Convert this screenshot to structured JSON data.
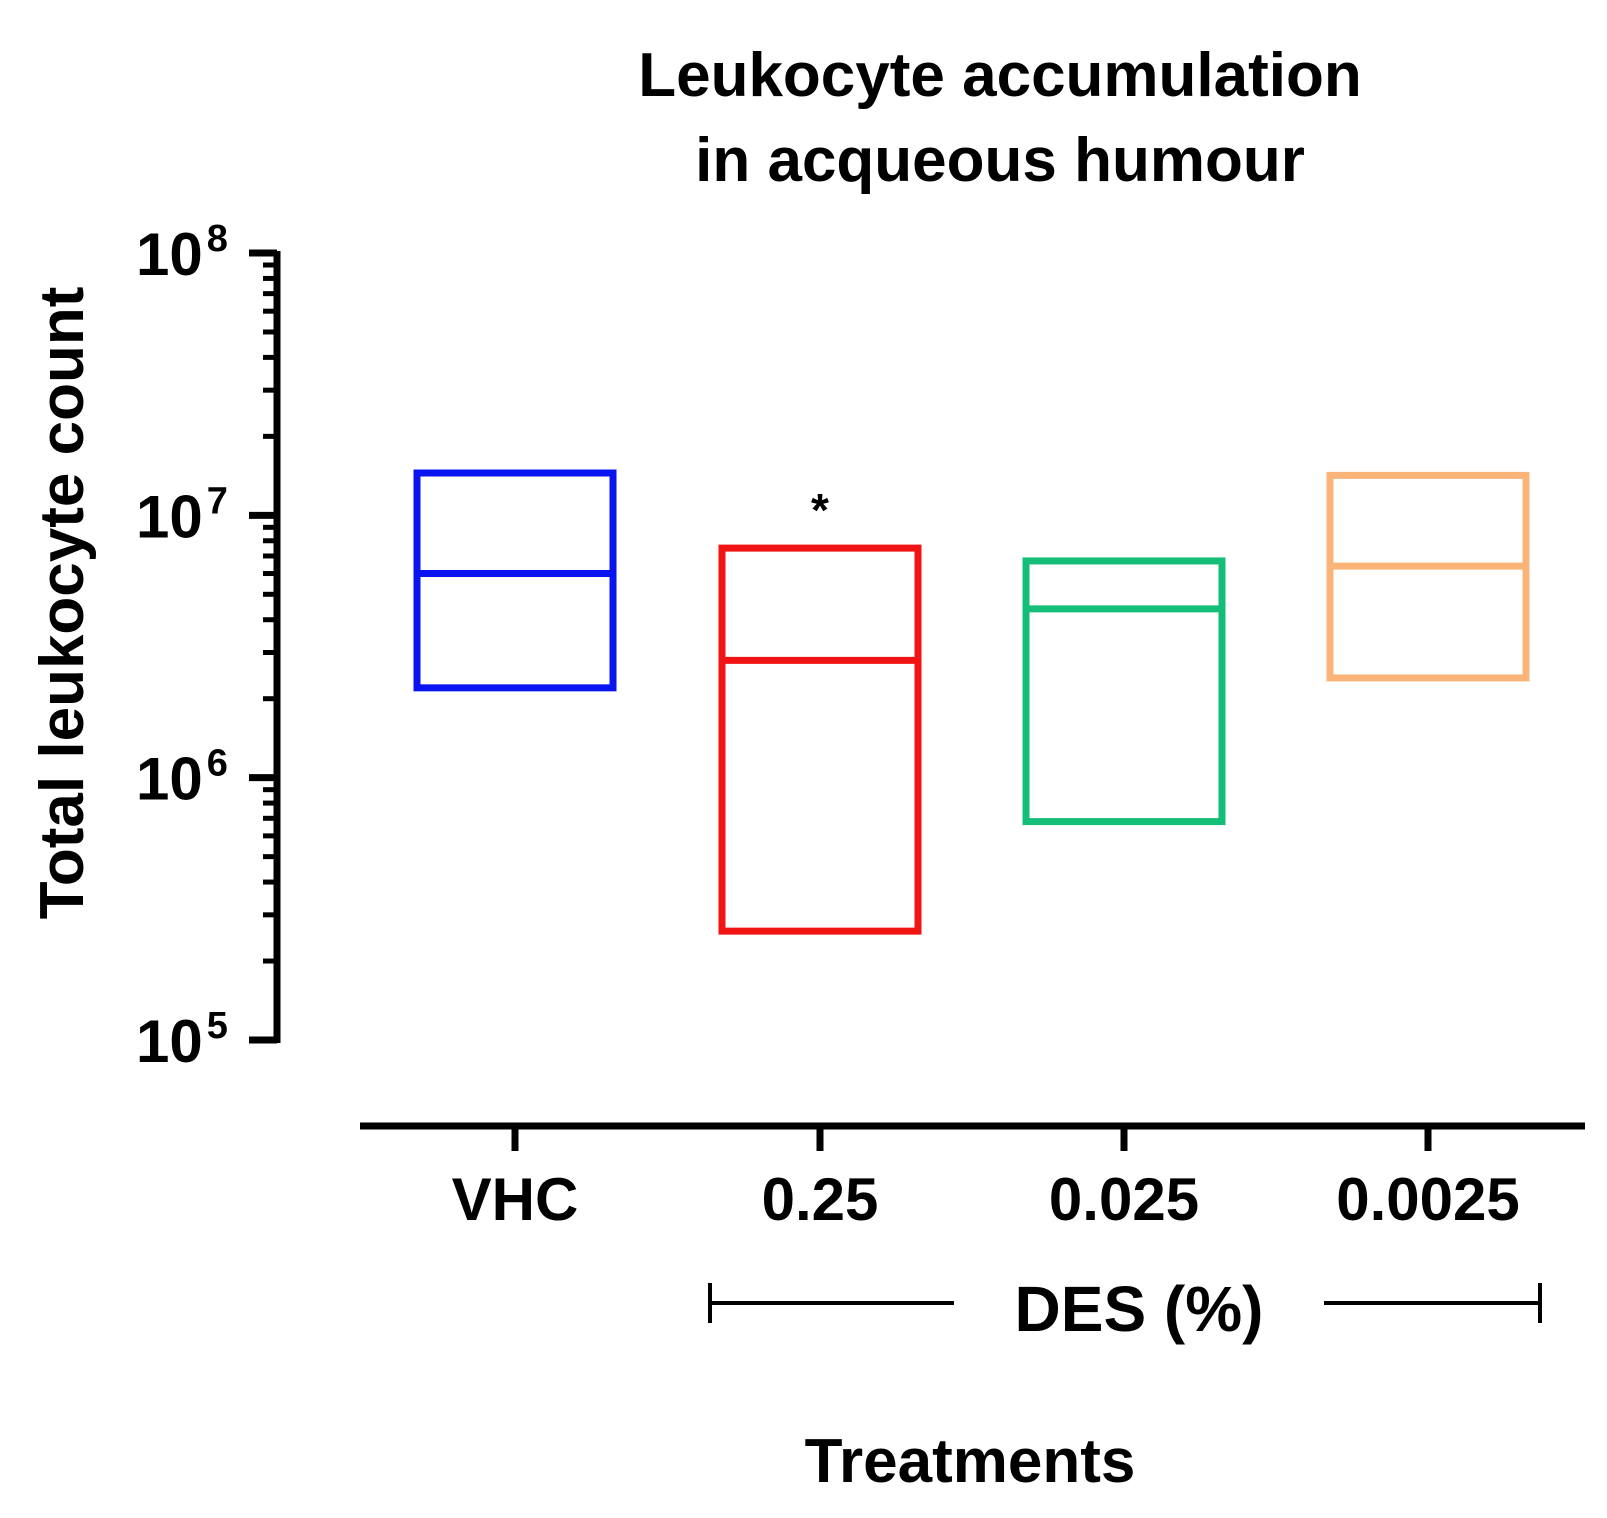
{
  "chart_data": {
    "type": "box",
    "title": [
      "Leukocyte accumulation",
      "in acqueous humour"
    ],
    "ylabel": "Total leukocyte count",
    "xlabel": "Treatments",
    "yscale": "log",
    "ylim": [
      100000,
      100000000
    ],
    "y_ticks": [
      {
        "base": "10",
        "exp": "5",
        "value": 100000
      },
      {
        "base": "10",
        "exp": "6",
        "value": 1000000
      },
      {
        "base": "10",
        "exp": "7",
        "value": 10000000
      },
      {
        "base": "10",
        "exp": "8",
        "value": 100000000
      }
    ],
    "categories": [
      "VHC",
      "0.25",
      "0.025",
      "0.0025"
    ],
    "group_label": "DES (%)",
    "series": [
      {
        "name": "VHC",
        "color": "#0a14f0",
        "min": 2200000,
        "median": 6000000,
        "max": 14500000,
        "annotation": ""
      },
      {
        "name": "0.25",
        "color": "#f01414",
        "min": 260000,
        "median": 2800000,
        "max": 7500000,
        "annotation": "*"
      },
      {
        "name": "0.025",
        "color": "#14be78",
        "min": 680000,
        "median": 4400000,
        "max": 6700000,
        "annotation": ""
      },
      {
        "name": "0.0025",
        "color": "#fab478",
        "min": 2400000,
        "median": 6400000,
        "max": 14200000,
        "annotation": ""
      }
    ]
  }
}
